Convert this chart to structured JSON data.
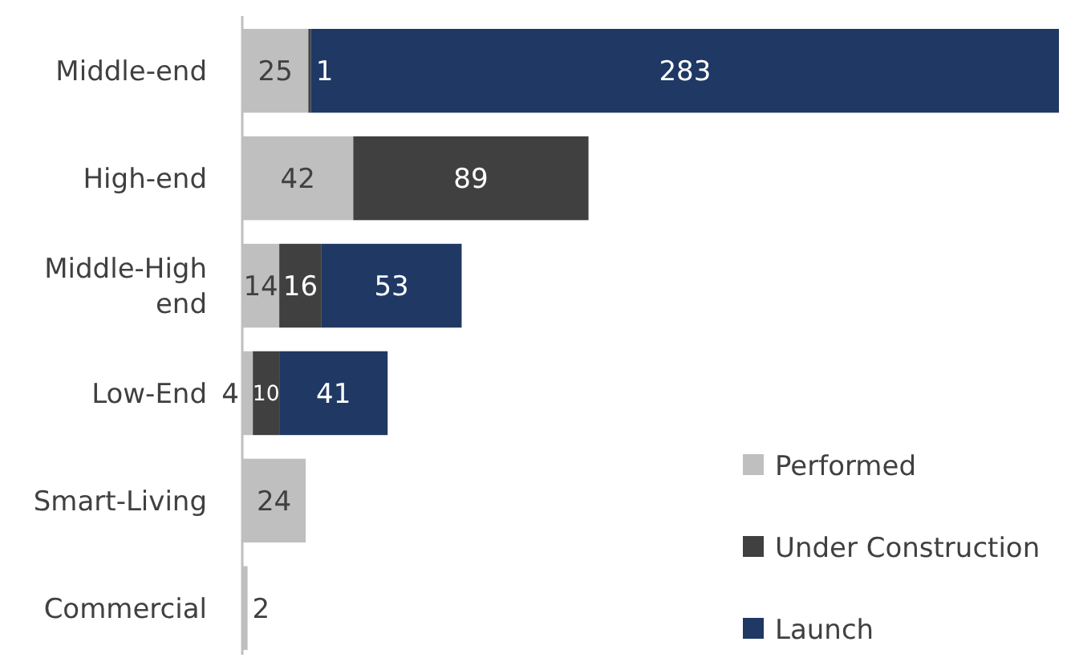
{
  "chart_data": {
    "type": "bar",
    "orientation": "horizontal",
    "stacked": true,
    "data_labels": true,
    "legend": "bottom right",
    "categories": [
      "Middle-end",
      "High-end",
      "Middle-High end",
      "Low-End",
      "Smart-Living",
      "Commercial"
    ],
    "series": [
      {
        "name": "Performed",
        "color": "#bfbfbf",
        "values": [
          25,
          42,
          14,
          4,
          24,
          2
        ]
      },
      {
        "name": "Under Construction",
        "color": "#404040",
        "values": [
          1,
          89,
          16,
          10,
          null,
          null
        ]
      },
      {
        "name": "Launch",
        "color": "#1f3864",
        "values": [
          283,
          null,
          53,
          41,
          null,
          null
        ]
      }
    ]
  }
}
